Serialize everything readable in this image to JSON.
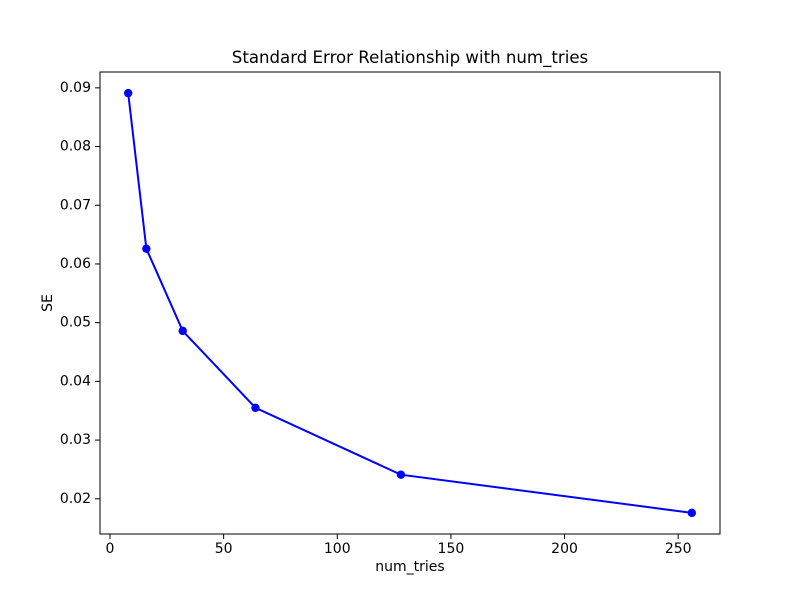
{
  "chart_data": {
    "type": "line",
    "title": "Standard Error Relationship with num_tries",
    "xlabel": "num_tries",
    "ylabel": "SE",
    "x": [
      8,
      16,
      32,
      64,
      128,
      256
    ],
    "y": [
      0.0891,
      0.0626,
      0.0486,
      0.0355,
      0.0241,
      0.0176
    ],
    "line_color": "#0000ff",
    "marker": "circle",
    "marker_color": "#0000ff",
    "xlim": [
      -4.4,
      268.4
    ],
    "ylim": [
      0.014,
      0.0927
    ],
    "xticks": [
      0,
      50,
      100,
      150,
      200,
      250
    ],
    "yticks": [
      0.02,
      0.03,
      0.04,
      0.05,
      0.06,
      0.07,
      0.08,
      0.09
    ],
    "ytick_decimals": 2,
    "grid": false,
    "legend_position": "none",
    "background_color": "#ffffff",
    "axis_color": "#000000"
  }
}
